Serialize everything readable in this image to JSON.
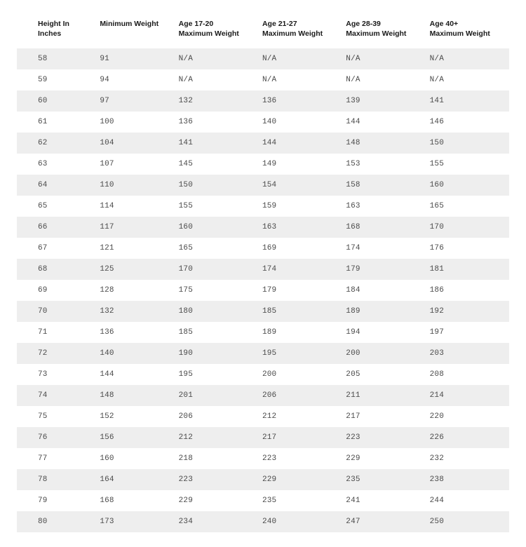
{
  "table": {
    "type": "table",
    "background_color": "#ffffff",
    "row_stripe_color": "#eeeeee",
    "header_text_color": "#1a1a1a",
    "cell_text_color": "#4a4a4a",
    "header_fontsize": 10.5,
    "cell_fontsize": 11,
    "columns": [
      {
        "label_line1": "Height In Inches",
        "label_line2": "",
        "width": "16%"
      },
      {
        "label_line1": "Minimum Weight",
        "label_line2": "",
        "width": "16%"
      },
      {
        "label_line1": "Age 17-20",
        "label_line2": "Maximum Weight",
        "width": "17%"
      },
      {
        "label_line1": "Age 21-27",
        "label_line2": "Maximum Weight",
        "width": "17%"
      },
      {
        "label_line1": "Age 28-39",
        "label_line2": "Maximum Weight",
        "width": "17%"
      },
      {
        "label_line1": "Age 40+",
        "label_line2": "Maximum Weight",
        "width": "17%"
      }
    ],
    "rows": [
      [
        "58",
        "91",
        "N/A",
        "N/A",
        "N/A",
        "N/A"
      ],
      [
        "59",
        "94",
        "N/A",
        "N/A",
        "N/A",
        "N/A"
      ],
      [
        "60",
        "97",
        "132",
        "136",
        "139",
        "141"
      ],
      [
        "61",
        "100",
        "136",
        "140",
        "144",
        "146"
      ],
      [
        "62",
        "104",
        "141",
        "144",
        "148",
        "150"
      ],
      [
        "63",
        "107",
        "145",
        "149",
        "153",
        "155"
      ],
      [
        "64",
        "110",
        "150",
        "154",
        "158",
        "160"
      ],
      [
        "65",
        "114",
        "155",
        "159",
        "163",
        "165"
      ],
      [
        "66",
        "117",
        "160",
        "163",
        "168",
        "170"
      ],
      [
        "67",
        "121",
        "165",
        "169",
        "174",
        "176"
      ],
      [
        "68",
        "125",
        "170",
        "174",
        "179",
        "181"
      ],
      [
        "69",
        "128",
        "175",
        "179",
        "184",
        "186"
      ],
      [
        "70",
        "132",
        "180",
        "185",
        "189",
        "192"
      ],
      [
        "71",
        "136",
        "185",
        "189",
        "194",
        "197"
      ],
      [
        "72",
        "140",
        "190",
        "195",
        "200",
        "203"
      ],
      [
        "73",
        "144",
        "195",
        "200",
        "205",
        "208"
      ],
      [
        "74",
        "148",
        "201",
        "206",
        "211",
        "214"
      ],
      [
        "75",
        "152",
        "206",
        "212",
        "217",
        "220"
      ],
      [
        "76",
        "156",
        "212",
        "217",
        "223",
        "226"
      ],
      [
        "77",
        "160",
        "218",
        "223",
        "229",
        "232"
      ],
      [
        "78",
        "164",
        "223",
        "229",
        "235",
        "238"
      ],
      [
        "79",
        "168",
        "229",
        "235",
        "241",
        "244"
      ],
      [
        "80",
        "173",
        "234",
        "240",
        "247",
        "250"
      ]
    ]
  }
}
